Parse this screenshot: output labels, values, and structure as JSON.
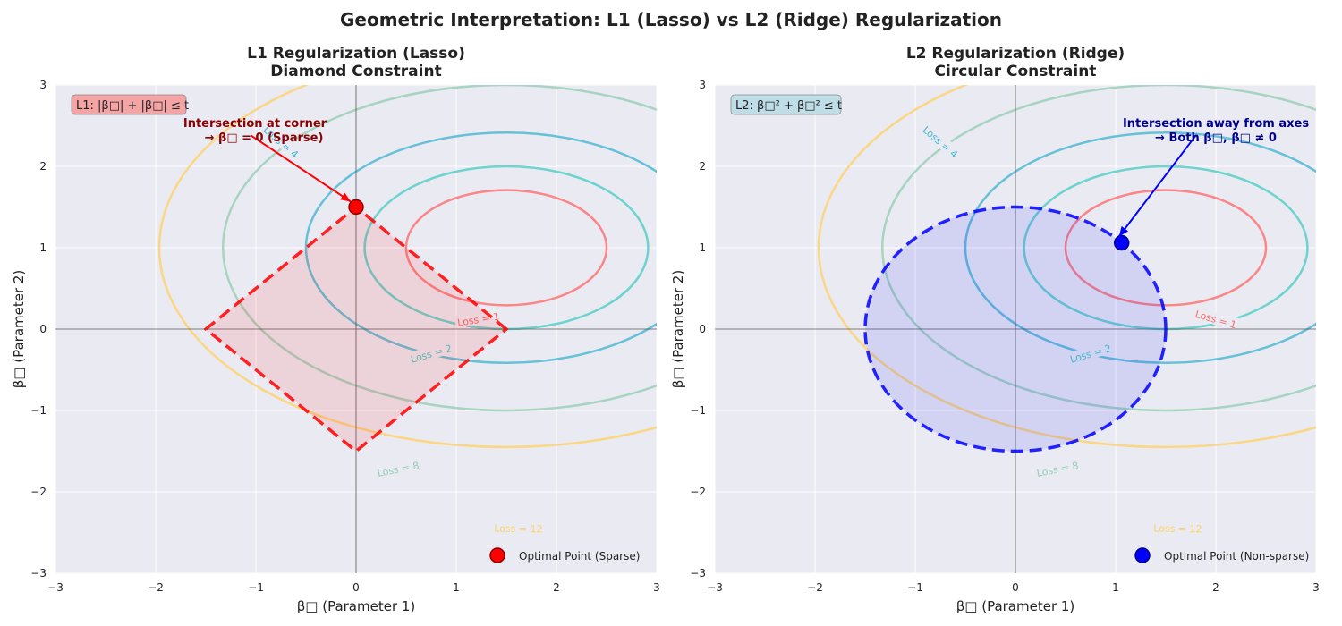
{
  "figure": {
    "title": "Geometric Interpretation: L1 (Lasso) vs L2 (Ridge) Regularization"
  },
  "colors": {
    "background": "#EAEAF2",
    "grid": "#ffffff",
    "loss_1": "#FF6B6B",
    "loss_2": "#4ECDC4",
    "loss_4": "#45B7D1",
    "loss_8": "#96CEB4",
    "loss_12": "#FFD166",
    "l1_constraint": "#FF0000",
    "l2_constraint": "#0000FF"
  },
  "chart_data": [
    {
      "type": "contour",
      "title_line1": "L1 Regularization (Lasso)",
      "title_line2": "Diamond Constraint",
      "xlabel": "β□ (Parameter 1)",
      "ylabel": "β□ (Parameter 2)",
      "xlim": [
        -3,
        3
      ],
      "ylim": [
        -3,
        3
      ],
      "xticks": [
        "−3",
        "−2",
        "−1",
        "0",
        "1",
        "2",
        "3"
      ],
      "yticks": [
        "−3",
        "−2",
        "−1",
        "0",
        "1",
        "2",
        "3"
      ],
      "grid": true,
      "loss_center": [
        1.5,
        1.0
      ],
      "loss_form": "(β1−1.5)^2 + 2(β2−1)^2",
      "loss_levels": [
        {
          "level": 1,
          "label": "Loss = 1",
          "color_key": "loss_1"
        },
        {
          "level": 2,
          "label": "Loss = 2",
          "color_key": "loss_2"
        },
        {
          "level": 4,
          "label": "Loss = 4",
          "color_key": "loss_4"
        },
        {
          "level": 8,
          "label": "Loss = 8",
          "color_key": "loss_8"
        },
        {
          "level": 12,
          "label": "Loss = 12",
          "color_key": "loss_12"
        }
      ],
      "constraint": {
        "shape": "diamond",
        "t": 1.5,
        "color_key": "l1_constraint"
      },
      "constraint_label": "L1: |β□| + |β□| ≤ t",
      "optimal_point": {
        "x": 0.0,
        "y": 1.5
      },
      "annotation_line1": "Intersection at corner",
      "annotation_line2": "→ β□ = 0 (Sparse)",
      "annotation_color": "#8B0000",
      "arrow_color": "#FF0000",
      "legend_label": "Optimal Point (Sparse)",
      "legend_position": "lower-right"
    },
    {
      "type": "contour",
      "title_line1": "L2 Regularization (Ridge)",
      "title_line2": "Circular Constraint",
      "xlabel": "β□ (Parameter 1)",
      "ylabel": "β□ (Parameter 2)",
      "xlim": [
        -3,
        3
      ],
      "ylim": [
        -3,
        3
      ],
      "xticks": [
        "−3",
        "−2",
        "−1",
        "0",
        "1",
        "2",
        "3"
      ],
      "yticks": [
        "−3",
        "−2",
        "−1",
        "0",
        "1",
        "2",
        "3"
      ],
      "grid": true,
      "loss_center": [
        1.5,
        1.0
      ],
      "loss_form": "(β1−1.5)^2 + 2(β2−1)^2",
      "loss_levels": [
        {
          "level": 1,
          "label": "Loss = 1",
          "color_key": "loss_1"
        },
        {
          "level": 2,
          "label": "Loss = 2",
          "color_key": "loss_2"
        },
        {
          "level": 4,
          "label": "Loss = 4",
          "color_key": "loss_4"
        },
        {
          "level": 8,
          "label": "Loss = 8",
          "color_key": "loss_8"
        },
        {
          "level": 12,
          "label": "Loss = 12",
          "color_key": "loss_12"
        }
      ],
      "constraint": {
        "shape": "circle",
        "t": 1.5,
        "color_key": "l2_constraint"
      },
      "constraint_label": "L2: β□² + β□² ≤ t",
      "optimal_point": {
        "x": 1.06,
        "y": 1.06
      },
      "annotation_line1": "Intersection away from axes",
      "annotation_line2": "→ Both β□, β□ ≠ 0",
      "annotation_color": "#00008B",
      "arrow_color": "#0000FF",
      "legend_label": "Optimal Point (Non-sparse)",
      "legend_position": "lower-right"
    }
  ]
}
